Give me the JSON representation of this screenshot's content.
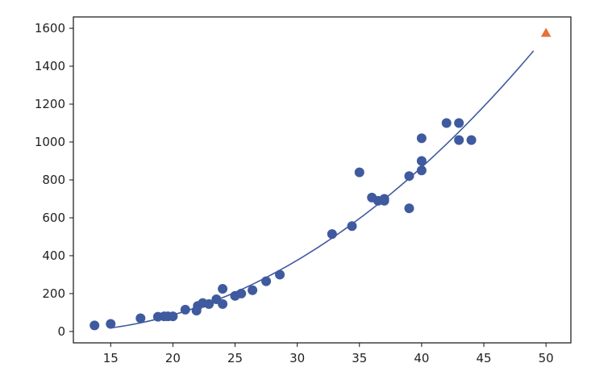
{
  "chart_data": {
    "type": "scatter",
    "title": "",
    "xlabel": "",
    "ylabel": "",
    "xlim": [
      12,
      52
    ],
    "ylim": [
      -60,
      1660
    ],
    "grid": false,
    "xticks": [
      15,
      20,
      25,
      30,
      35,
      40,
      45,
      50
    ],
    "yticks": [
      0,
      200,
      400,
      600,
      800,
      1000,
      1200,
      1400,
      1600
    ],
    "series": [
      {
        "kind": "scatter",
        "color": "#3f5a9e",
        "marker": "circle",
        "points": [
          [
            13.7,
            32
          ],
          [
            15.0,
            40
          ],
          [
            17.4,
            70
          ],
          [
            18.8,
            78
          ],
          [
            19.3,
            80
          ],
          [
            19.6,
            80
          ],
          [
            20.0,
            80
          ],
          [
            21.0,
            115
          ],
          [
            21.9,
            110
          ],
          [
            22.0,
            135
          ],
          [
            22.4,
            150
          ],
          [
            22.9,
            145
          ],
          [
            23.5,
            170
          ],
          [
            24.0,
            225
          ],
          [
            24.0,
            145
          ],
          [
            25.0,
            188
          ],
          [
            25.5,
            200
          ],
          [
            26.4,
            218
          ],
          [
            27.5,
            265
          ],
          [
            28.6,
            300
          ],
          [
            32.8,
            514
          ],
          [
            34.4,
            556
          ],
          [
            35.0,
            840
          ],
          [
            36.0,
            707
          ],
          [
            36.5,
            690
          ],
          [
            37.0,
            690
          ],
          [
            37.0,
            700
          ],
          [
            39.0,
            650
          ],
          [
            39.0,
            820
          ],
          [
            40.0,
            850
          ],
          [
            40.0,
            900
          ],
          [
            40.0,
            1020
          ],
          [
            42.0,
            1100
          ],
          [
            43.0,
            1100
          ],
          [
            43.0,
            1010
          ],
          [
            44.0,
            1010
          ]
        ]
      },
      {
        "kind": "line",
        "color": "#3f5a9e",
        "coefficients": [
          1.01,
          -21.63,
          116.05
        ],
        "x_range": [
          15,
          49
        ]
      },
      {
        "kind": "scatter",
        "color": "#e8703a",
        "marker": "triangle",
        "points": [
          [
            50,
            1573
          ]
        ]
      }
    ]
  }
}
